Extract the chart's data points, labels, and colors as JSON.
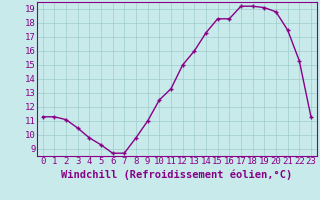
{
  "x": [
    0,
    1,
    2,
    3,
    4,
    5,
    6,
    7,
    8,
    9,
    10,
    11,
    12,
    13,
    14,
    15,
    16,
    17,
    18,
    19,
    20,
    21,
    22,
    23
  ],
  "y": [
    11.3,
    11.3,
    11.1,
    10.5,
    9.8,
    9.3,
    8.7,
    8.7,
    9.8,
    11.0,
    12.5,
    13.3,
    15.0,
    16.0,
    17.3,
    18.3,
    18.3,
    19.2,
    19.2,
    19.1,
    18.8,
    17.5,
    15.3,
    11.3
  ],
  "line_color": "#880088",
  "marker": "+",
  "bg_color": "#c8eaea",
  "grid_color": "#a0cccc",
  "xlabel": "Windchill (Refroidissement éolien,°C)",
  "xlim": [
    -0.5,
    23.5
  ],
  "ylim": [
    8.5,
    19.5
  ],
  "yticks": [
    9,
    10,
    11,
    12,
    13,
    14,
    15,
    16,
    17,
    18,
    19
  ],
  "xticks": [
    0,
    1,
    2,
    3,
    4,
    5,
    6,
    7,
    8,
    9,
    10,
    11,
    12,
    13,
    14,
    15,
    16,
    17,
    18,
    19,
    20,
    21,
    22,
    23
  ],
  "spine_color": "#880088",
  "label_color": "#880088",
  "fontsize_xlabel": 7.5,
  "fontsize_ticks": 6.5,
  "linewidth": 1.0,
  "marker_size": 3.5,
  "marker_ew": 1.0
}
